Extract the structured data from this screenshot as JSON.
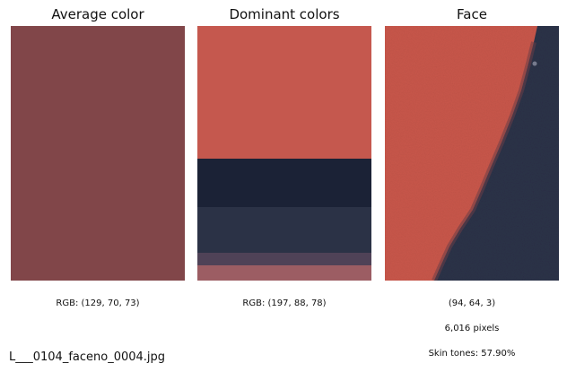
{
  "panels": {
    "average": {
      "title": "Average color",
      "caption": "RGB: (129, 70, 73)",
      "color": "#814649"
    },
    "dominant": {
      "title": "Dominant colors",
      "caption": "RGB: (197, 88, 78)",
      "colors": [
        "#c5584e",
        "#1b2236",
        "#2b3246",
        "#4f4257",
        "#9c5d63"
      ],
      "proportions": [
        0.52,
        0.19,
        0.18,
        0.05,
        0.06
      ]
    },
    "face": {
      "title": "Face",
      "dimensions": "(94, 64, 3)",
      "pixels": "6,016 pixels",
      "skin_tones": "Skin tones: 57.90%",
      "skin_color": "#c9574b",
      "dark_color": "#2c3248"
    }
  },
  "filename": "L___0104_faceno_0004.jpg"
}
